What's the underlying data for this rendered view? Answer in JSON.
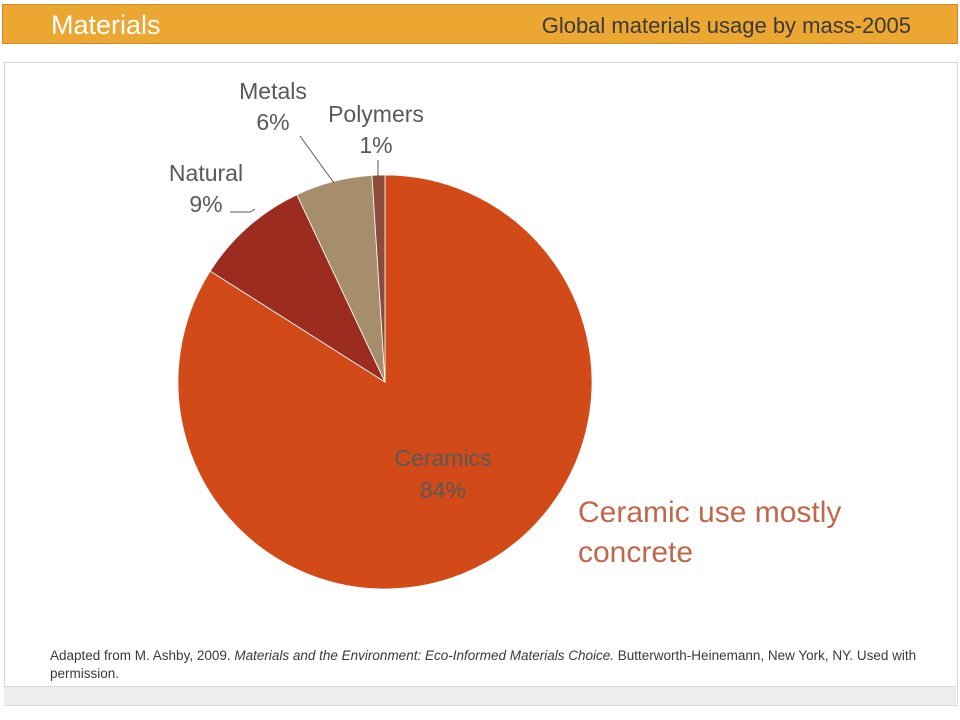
{
  "header": {
    "title": "Materials",
    "subtitle": "Global materials usage by mass-2005"
  },
  "chart_data": {
    "type": "pie",
    "categories": [
      "Ceramics",
      "Natural",
      "Metals",
      "Polymers"
    ],
    "values": [
      84,
      9,
      6,
      1
    ],
    "value_labels": [
      "84%",
      "9%",
      "6%",
      "1%"
    ],
    "colors": [
      "#d24a18",
      "#9b2c1f",
      "#a68e6c",
      "#8c4a38"
    ],
    "annotation": "Ceramic use mostly concrete"
  },
  "source": {
    "before": "Adapted from M. Ashby, 2009. ",
    "italic": "Materials and the Environment: Eco-Informed Materials Choice.",
    "after": " Butterworth-Heinemann, New York, NY. Used with permission."
  }
}
